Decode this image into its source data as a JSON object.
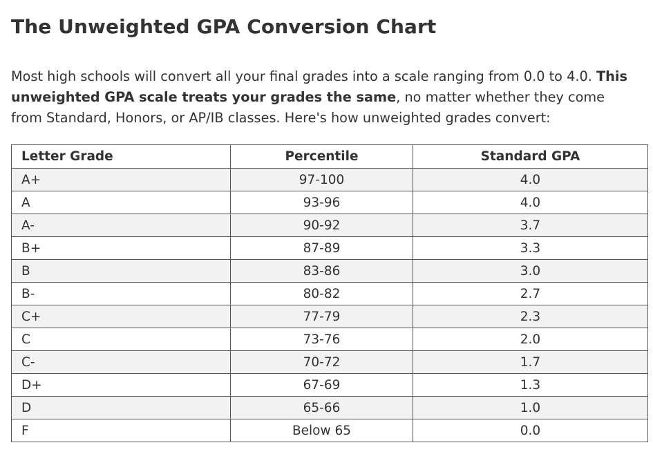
{
  "heading": "The Unweighted GPA Conversion Chart",
  "intro": {
    "part1": "Most high schools will convert all your final grades into a scale ranging from 0.0 to 4.0. ",
    "bold": "This unweighted GPA scale treats your grades the same",
    "part2": ", no matter whether they come from Standard, Honors, or AP/IB classes. Here's how unweighted grades convert:"
  },
  "table": {
    "headers": [
      "Letter Grade",
      "Percentile",
      "Standard GPA"
    ],
    "rows": [
      [
        "A+",
        "97-100",
        "4.0"
      ],
      [
        "A",
        "93-96",
        "4.0"
      ],
      [
        "A-",
        "90-92",
        "3.7"
      ],
      [
        "B+",
        "87-89",
        "3.3"
      ],
      [
        "B",
        "83-86",
        "3.0"
      ],
      [
        "B-",
        "80-82",
        "2.7"
      ],
      [
        "C+",
        "77-79",
        "2.3"
      ],
      [
        "C",
        "73-76",
        "2.0"
      ],
      [
        "C-",
        "70-72",
        "1.7"
      ],
      [
        "D+",
        "67-69",
        "1.3"
      ],
      [
        "D",
        "65-66",
        "1.0"
      ],
      [
        "F",
        "Below 65",
        "0.0"
      ]
    ]
  }
}
